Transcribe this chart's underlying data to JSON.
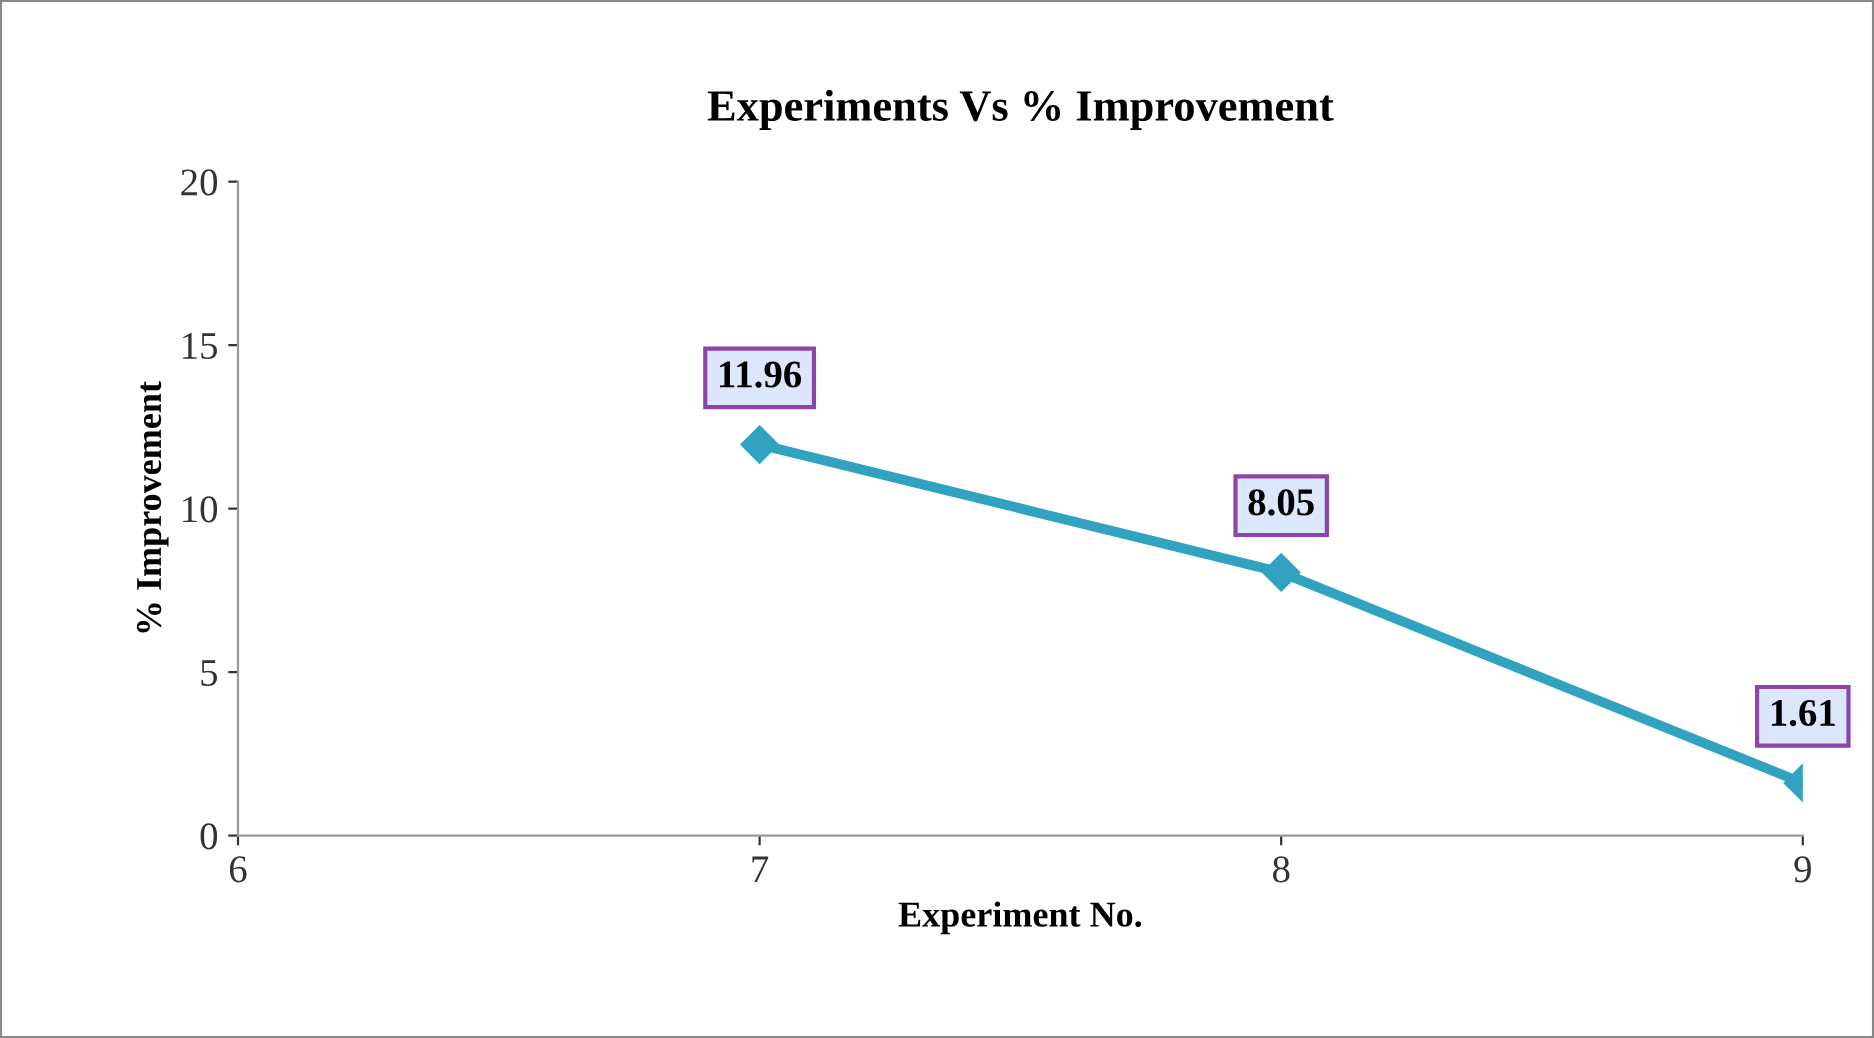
{
  "chart_data": {
    "type": "line",
    "title": "Experiments Vs % Improvement",
    "xlabel": "Experiment No.",
    "ylabel": "% Improvement",
    "x": [
      7,
      8,
      9
    ],
    "series": [
      {
        "color": "#31a2c0",
        "values": [
          11.96,
          8.05,
          1.61
        ]
      }
    ],
    "xlim": [
      6,
      9
    ],
    "xticks": [
      6,
      7,
      8,
      9
    ],
    "ylim": [
      0,
      20
    ],
    "yticks": [
      0,
      5,
      10,
      15,
      20
    ],
    "marker": "diamond",
    "data_labels": true,
    "grid": false,
    "legend": false
  }
}
